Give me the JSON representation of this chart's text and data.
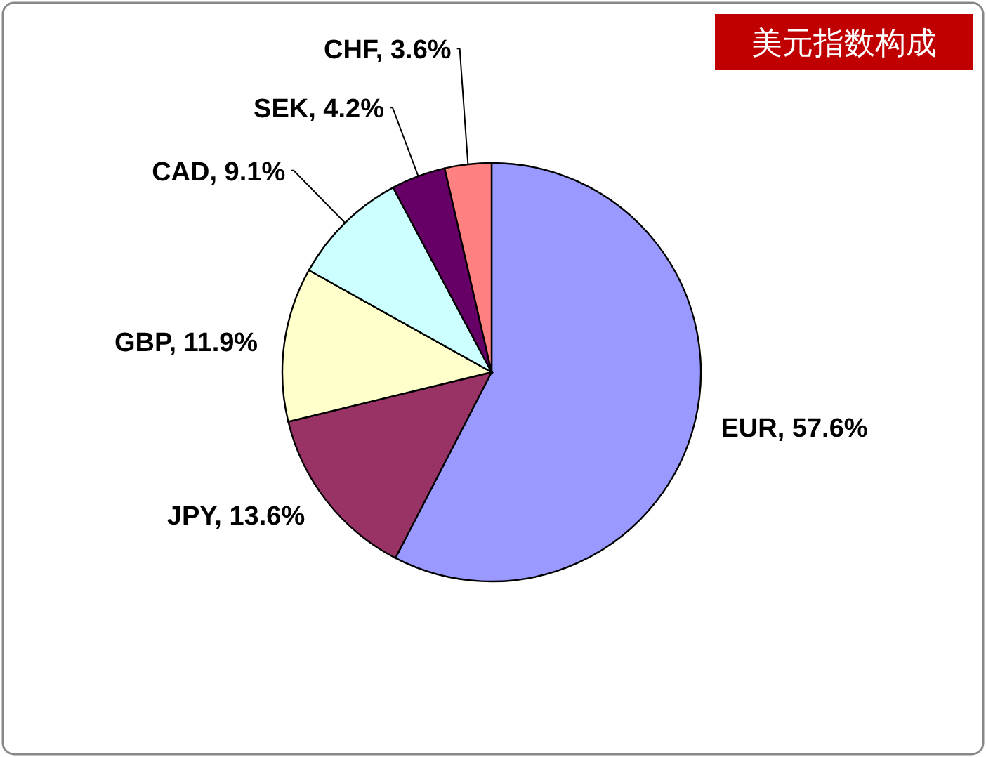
{
  "chart_data": {
    "type": "pie",
    "title": "美元指数构成",
    "categories": [
      "EUR",
      "JPY",
      "GBP",
      "CAD",
      "SEK",
      "CHF"
    ],
    "values": [
      57.6,
      13.6,
      11.9,
      9.1,
      4.2,
      3.6
    ],
    "colors": [
      "#9999ff",
      "#993366",
      "#ffffcc",
      "#ccffff",
      "#660066",
      "#ff8080"
    ],
    "value_labels": [
      "57.6%",
      "13.6%",
      "11.9%",
      "9.1%",
      "4.2%",
      "3.6%"
    ]
  }
}
